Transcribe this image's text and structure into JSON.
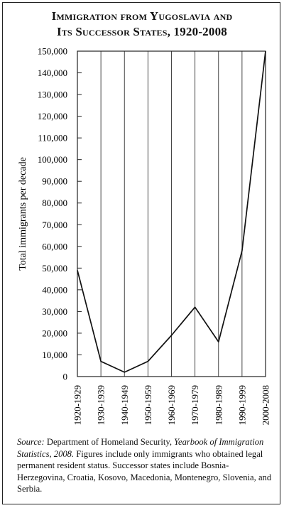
{
  "title": {
    "line1": "Immigration from Yugoslavia and",
    "line2": "Its Successor States, 1920-2008"
  },
  "chart_data": {
    "type": "line",
    "ylabel": "Total immigrants per decade",
    "xlabel": "",
    "categories": [
      "1920-1929",
      "1930-1939",
      "1940-1949",
      "1950-1959",
      "1960-1969",
      "1970-1979",
      "1980-1989",
      "1990-1999",
      "2000-2008"
    ],
    "values": [
      49000,
      7000,
      2000,
      7000,
      19000,
      32000,
      16000,
      58000,
      150000
    ],
    "ylim": [
      0,
      150000
    ],
    "yticks": [
      0,
      10000,
      20000,
      30000,
      40000,
      50000,
      60000,
      70000,
      80000,
      90000,
      100000,
      110000,
      120000,
      130000,
      140000,
      150000
    ],
    "ytick_labels": [
      "0",
      "10,000",
      "20,000",
      "30,000",
      "40,000",
      "50,000",
      "60,000",
      "70,000",
      "80,000",
      "90,000",
      "100,000",
      "110,000",
      "120,000",
      "130,000",
      "140,000",
      "150,000"
    ],
    "grid": "vertical",
    "line_color": "#111111"
  },
  "source": {
    "label": "Source:",
    "text_a": " Department of Homeland Security, ",
    "publication": "Yearbook of Immigration Statistics, 2008.",
    "text_b": " Figures include only immigrants who obtained legal permanent resident status. Successor states include Bosnia-Herzegovina, Croatia, Kosovo, Macedonia, Montenegro, Slovenia, and Serbia."
  }
}
